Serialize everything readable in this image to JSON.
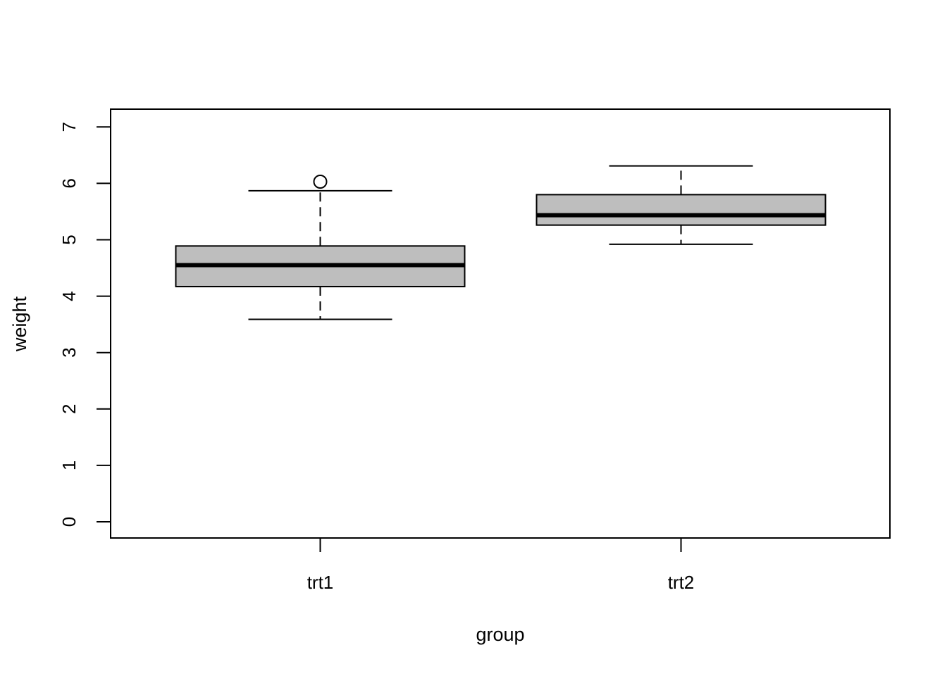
{
  "chart_data": {
    "type": "boxplot",
    "title": "",
    "xlabel": "group",
    "ylabel": "weight",
    "categories": [
      "trt1",
      "trt2"
    ],
    "y_axis": {
      "min": 0,
      "max": 7,
      "ticks": [
        0,
        1,
        2,
        3,
        4,
        5,
        6,
        7
      ]
    },
    "series": [
      {
        "group": "trt1",
        "lower_whisker": 3.59,
        "q1": 4.17,
        "median": 4.55,
        "q3": 4.89,
        "upper_whisker": 5.87,
        "outliers": [
          6.03
        ]
      },
      {
        "group": "trt2",
        "lower_whisker": 4.92,
        "q1": 5.26,
        "median": 5.435,
        "q3": 5.8,
        "upper_whisker": 6.31,
        "outliers": []
      }
    ],
    "style": {
      "box_fill": "#bebebe",
      "stroke": "#000000",
      "background": "#ffffff"
    },
    "grid": false,
    "legend": "none"
  }
}
